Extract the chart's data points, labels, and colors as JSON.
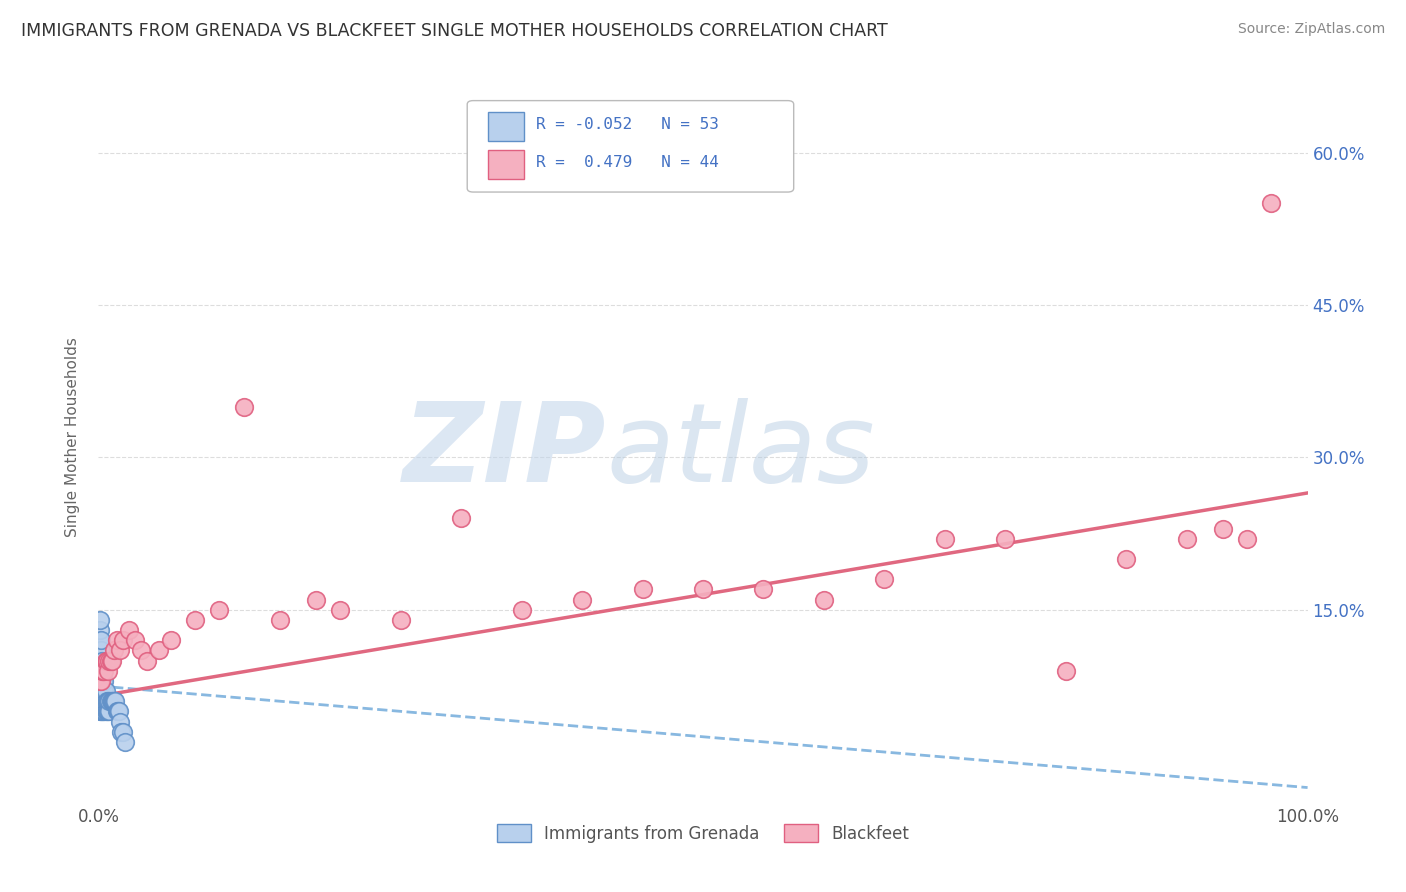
{
  "title": "IMMIGRANTS FROM GRENADA VS BLACKFEET SINGLE MOTHER HOUSEHOLDS CORRELATION CHART",
  "source": "Source: ZipAtlas.com",
  "ylabel": "Single Mother Households",
  "xlim": [
    0.0,
    1.0
  ],
  "ylim": [
    -0.04,
    0.68
  ],
  "ytick_values": [
    0.15,
    0.3,
    0.45,
    0.6
  ],
  "series1_label": "Immigrants from Grenada",
  "series2_label": "Blackfeet",
  "series1_color": "#b8d0ed",
  "series2_color": "#f5b0c0",
  "series1_edge_color": "#6090c8",
  "series2_edge_color": "#e06080",
  "legend_R_color": "#4472c4",
  "trend1_color": "#88b8e0",
  "trend2_color": "#e06880",
  "watermark_zip_color": "#c5d8ec",
  "watermark_atlas_color": "#b8cce0",
  "background_color": "#ffffff",
  "grid_color": "#dddddd",
  "series1_x": [
    0.001,
    0.001,
    0.001,
    0.001,
    0.001,
    0.001,
    0.001,
    0.001,
    0.001,
    0.001,
    0.002,
    0.002,
    0.002,
    0.002,
    0.002,
    0.002,
    0.002,
    0.002,
    0.003,
    0.003,
    0.003,
    0.003,
    0.003,
    0.003,
    0.004,
    0.004,
    0.004,
    0.004,
    0.005,
    0.005,
    0.005,
    0.005,
    0.006,
    0.006,
    0.006,
    0.007,
    0.007,
    0.008,
    0.008,
    0.009,
    0.009,
    0.01,
    0.011,
    0.012,
    0.013,
    0.014,
    0.015,
    0.016,
    0.017,
    0.018,
    0.019,
    0.02,
    0.022
  ],
  "series1_y": [
    0.05,
    0.06,
    0.07,
    0.08,
    0.09,
    0.1,
    0.11,
    0.12,
    0.13,
    0.14,
    0.05,
    0.06,
    0.07,
    0.08,
    0.09,
    0.1,
    0.11,
    0.12,
    0.05,
    0.06,
    0.07,
    0.08,
    0.09,
    0.1,
    0.05,
    0.06,
    0.07,
    0.08,
    0.05,
    0.06,
    0.07,
    0.08,
    0.05,
    0.06,
    0.07,
    0.05,
    0.06,
    0.05,
    0.06,
    0.05,
    0.06,
    0.06,
    0.06,
    0.06,
    0.06,
    0.06,
    0.05,
    0.05,
    0.05,
    0.04,
    0.03,
    0.03,
    0.02
  ],
  "series2_x": [
    0.001,
    0.002,
    0.003,
    0.004,
    0.005,
    0.006,
    0.007,
    0.008,
    0.009,
    0.01,
    0.011,
    0.013,
    0.015,
    0.018,
    0.02,
    0.025,
    0.03,
    0.035,
    0.04,
    0.05,
    0.06,
    0.08,
    0.1,
    0.12,
    0.15,
    0.18,
    0.2,
    0.25,
    0.3,
    0.35,
    0.4,
    0.45,
    0.5,
    0.55,
    0.6,
    0.65,
    0.7,
    0.75,
    0.8,
    0.85,
    0.9,
    0.93,
    0.95,
    0.97
  ],
  "series2_y": [
    0.08,
    0.08,
    0.09,
    0.09,
    0.09,
    0.1,
    0.1,
    0.09,
    0.1,
    0.1,
    0.1,
    0.11,
    0.12,
    0.11,
    0.12,
    0.13,
    0.12,
    0.11,
    0.1,
    0.11,
    0.12,
    0.14,
    0.15,
    0.35,
    0.14,
    0.16,
    0.15,
    0.14,
    0.24,
    0.15,
    0.16,
    0.17,
    0.17,
    0.17,
    0.16,
    0.18,
    0.22,
    0.22,
    0.09,
    0.2,
    0.22,
    0.23,
    0.22,
    0.55
  ],
  "trend1_slope": -0.1,
  "trend1_intercept": 0.075,
  "trend2_slope": 0.2,
  "trend2_intercept": 0.065
}
